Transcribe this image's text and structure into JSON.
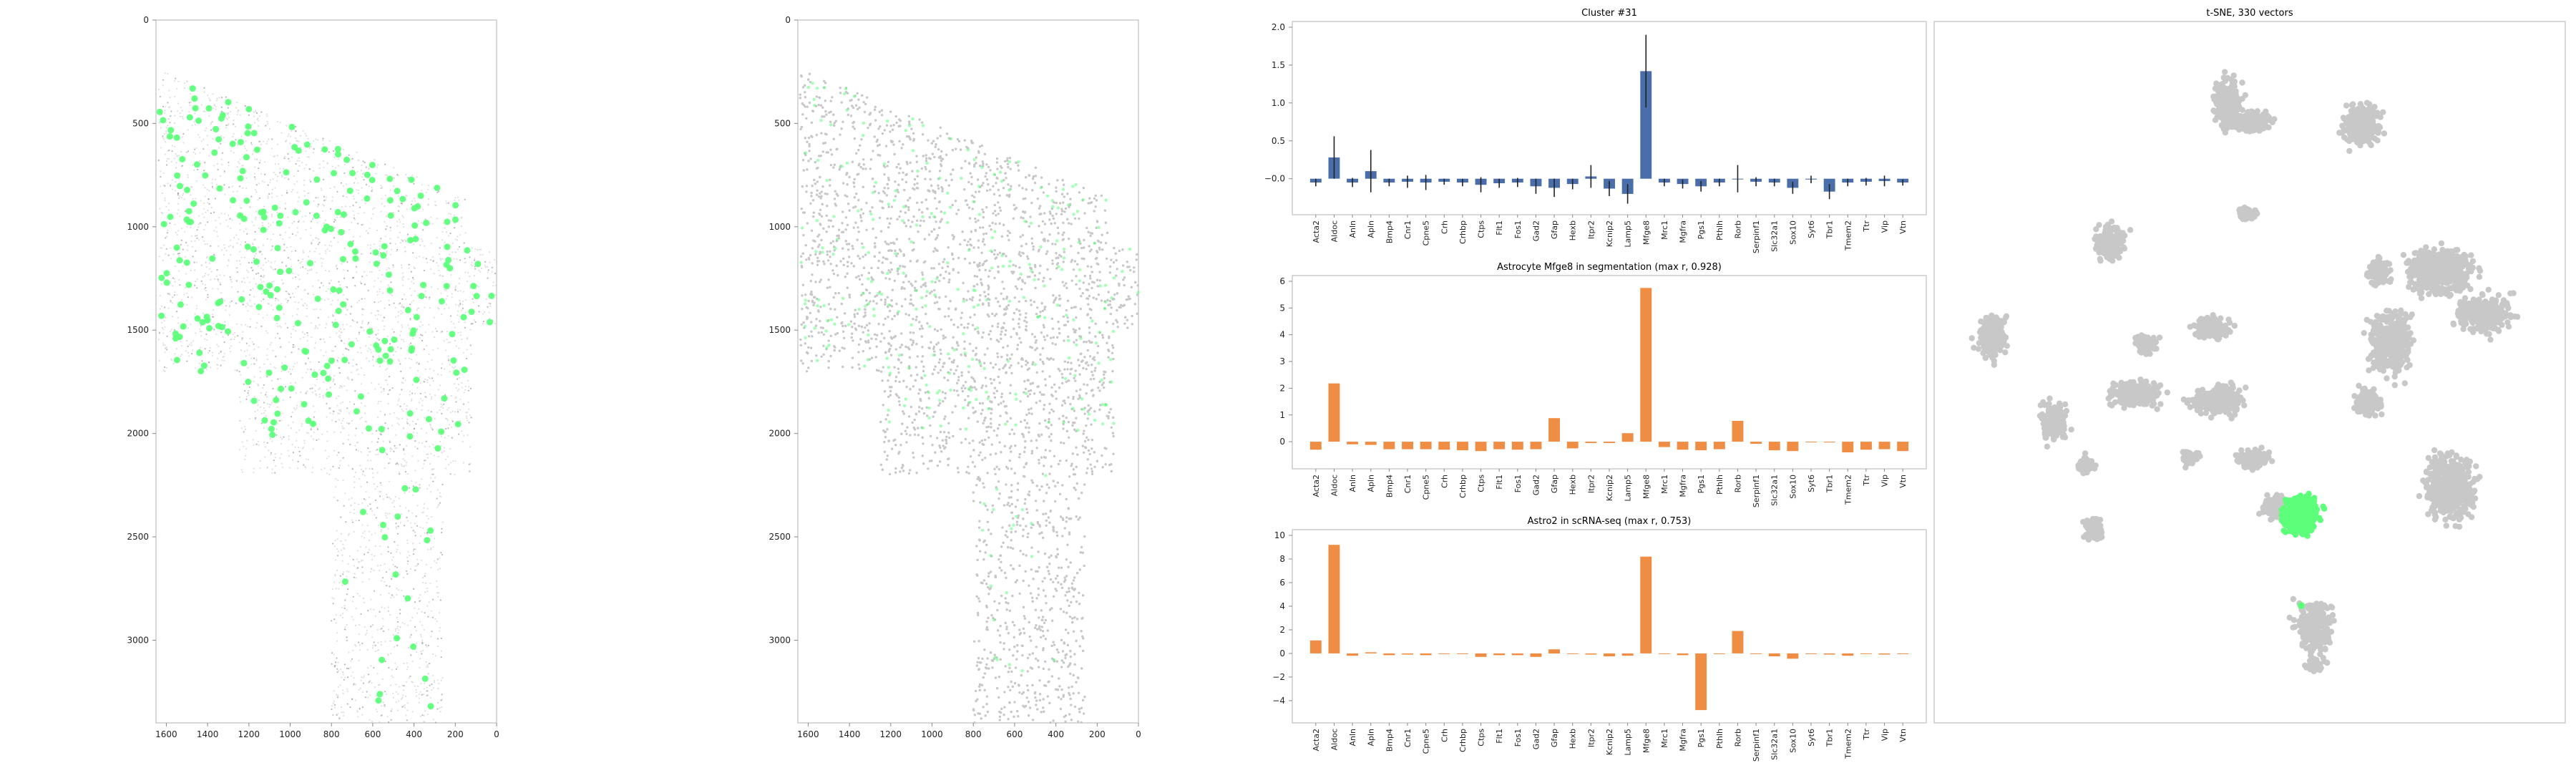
{
  "colors": {
    "highlight": "#5dff7a",
    "tissue": "#c8c8c8",
    "tissue_dark": "#a8a8a8",
    "cluster_bar": "#4a6ea9",
    "compare_bar": "#ef8d45",
    "axis": "#cccccc",
    "text": "#222222"
  },
  "chart_data": [
    {
      "id": "panel1",
      "type": "scatter",
      "title": "",
      "xlabel": "",
      "ylabel": "",
      "xlim": [
        1650,
        0
      ],
      "ylim": [
        3400,
        0
      ],
      "x_ticks": [
        "1600",
        "1400",
        "1200",
        "1000",
        "800",
        "600",
        "400",
        "200",
        "0"
      ],
      "x_tick_values": [
        1600,
        1400,
        1200,
        1000,
        800,
        600,
        400,
        200,
        0
      ],
      "y_ticks": [
        "0",
        "500",
        "1000",
        "1500",
        "2000",
        "2500",
        "3000"
      ],
      "y_tick_values": [
        0,
        500,
        1000,
        1500,
        2000,
        2500,
        3000
      ],
      "background": "tissue section (gray, sparse)",
      "highlight_series": "cells in cluster (green)",
      "grid": false
    },
    {
      "id": "panel2",
      "type": "scatter",
      "title": "",
      "xlabel": "",
      "ylabel": "",
      "xlim": [
        1650,
        0
      ],
      "ylim": [
        3400,
        0
      ],
      "x_ticks": [
        "1600",
        "1400",
        "1200",
        "1000",
        "800",
        "600",
        "400",
        "200",
        "0"
      ],
      "x_tick_values": [
        1600,
        1400,
        1200,
        1000,
        800,
        600,
        400,
        200,
        0
      ],
      "y_ticks": [
        "0",
        "500",
        "1000",
        "1500",
        "2000",
        "2500",
        "3000"
      ],
      "y_tick_values": [
        0,
        500,
        1000,
        1500,
        2000,
        2500,
        3000
      ],
      "background": "tissue section (gray, dense)",
      "highlight_series": "cells in cluster (green, faint)",
      "grid": false
    },
    {
      "id": "bar1",
      "type": "bar",
      "title": "Cluster #31",
      "xlabel": "",
      "ylabel": "",
      "ylim": [
        -0.4,
        2.0
      ],
      "y_ticks": [
        "−0.0",
        "0.5",
        "1.0",
        "1.5",
        "2.0"
      ],
      "y_tick_values": [
        0,
        0.5,
        1.0,
        1.5,
        2.0
      ],
      "categories": [
        "Acta2",
        "Aldoc",
        "Anln",
        "Apln",
        "Bmp4",
        "Cnr1",
        "Cpne5",
        "Crh",
        "Crhbp",
        "Ctps",
        "Flt1",
        "Fos1",
        "Gad2",
        "Gfap",
        "Hexb",
        "Itpr2",
        "Kcnip2",
        "Lamp5",
        "Mfge8",
        "Mrc1",
        "Mgfra",
        "Pgs1",
        "Pthlh",
        "Rorb",
        "Serpinf1",
        "Slc32a1",
        "Sox10",
        "Syt6",
        "Tbr1",
        "Tmem2",
        "Ttr",
        "Vip",
        "Vtn"
      ],
      "values": [
        -0.05,
        0.28,
        -0.05,
        0.1,
        -0.05,
        -0.04,
        -0.05,
        -0.04,
        -0.05,
        -0.08,
        -0.06,
        -0.05,
        -0.1,
        -0.12,
        -0.07,
        0.03,
        -0.13,
        -0.2,
        1.42,
        -0.05,
        -0.07,
        -0.1,
        -0.05,
        0.0,
        -0.04,
        -0.05,
        -0.12,
        -0.01,
        -0.17,
        -0.05,
        -0.04,
        -0.03,
        -0.05
      ],
      "errors": [
        0.05,
        0.28,
        0.06,
        0.28,
        0.05,
        0.08,
        0.1,
        0.04,
        0.05,
        0.1,
        0.06,
        0.06,
        0.1,
        0.12,
        0.07,
        0.15,
        0.1,
        0.13,
        0.48,
        0.05,
        0.06,
        0.07,
        0.05,
        0.18,
        0.06,
        0.05,
        0.08,
        0.05,
        0.1,
        0.05,
        0.05,
        0.07,
        0.04
      ],
      "grid": false
    },
    {
      "id": "bar2",
      "type": "bar",
      "title": "Astrocyte Mfge8 in segmentation (max r, 0.928)",
      "xlabel": "",
      "ylabel": "",
      "ylim": [
        -0.8,
        6.0
      ],
      "y_ticks": [
        "0",
        "1",
        "2",
        "3",
        "4",
        "5",
        "6"
      ],
      "y_tick_values": [
        0,
        1,
        2,
        3,
        4,
        5,
        6
      ],
      "categories": [
        "Acta2",
        "Aldoc",
        "Anln",
        "Apln",
        "Bmp4",
        "Cnr1",
        "Cpne5",
        "Crh",
        "Crhbp",
        "Ctps",
        "Flt1",
        "Fos1",
        "Gad2",
        "Gfap",
        "Hexb",
        "Itpr2",
        "Kcnip2",
        "Lamp5",
        "Mfge8",
        "Mrc1",
        "Mgfra",
        "Pgs1",
        "Pthlh",
        "Rorb",
        "Serpinf1",
        "Slc32a1",
        "Sox10",
        "Syt6",
        "Tbr1",
        "Tmem2",
        "Ttr",
        "Vip",
        "Vtn"
      ],
      "values": [
        -0.3,
        2.18,
        -0.1,
        -0.12,
        -0.28,
        -0.28,
        -0.28,
        -0.3,
        -0.32,
        -0.35,
        -0.28,
        -0.3,
        -0.28,
        0.88,
        -0.25,
        -0.05,
        -0.05,
        0.32,
        5.75,
        -0.2,
        -0.3,
        -0.32,
        -0.28,
        0.78,
        -0.08,
        -0.32,
        -0.35,
        0.0,
        -0.03,
        -0.4,
        -0.3,
        -0.28,
        -0.35
      ],
      "grid": false
    },
    {
      "id": "bar3",
      "type": "bar",
      "title": "Astro2 in scRNA-seq (max r, 0.753)",
      "xlabel": "",
      "ylabel": "",
      "ylim": [
        -5.4,
        10.0
      ],
      "y_ticks": [
        "−4",
        "−2",
        "0",
        "2",
        "4",
        "6",
        "8",
        "10"
      ],
      "y_tick_values": [
        -4,
        -2,
        0,
        2,
        4,
        6,
        8,
        10
      ],
      "categories": [
        "Acta2",
        "Aldoc",
        "Anln",
        "Apln",
        "Bmp4",
        "Cnr1",
        "Cpne5",
        "Crh",
        "Crhbp",
        "Ctps",
        "Flt1",
        "Fos1",
        "Gad2",
        "Gfap",
        "Hexb",
        "Itpr2",
        "Kcnip2",
        "Lamp5",
        "Mfge8",
        "Mrc1",
        "Mgfra",
        "Pgs1",
        "Pthlh",
        "Rorb",
        "Serpinf1",
        "Slc32a1",
        "Sox10",
        "Syt6",
        "Tbr1",
        "Tmem2",
        "Ttr",
        "Vip",
        "Vtn"
      ],
      "values": [
        1.1,
        9.2,
        -0.2,
        0.1,
        -0.15,
        -0.1,
        -0.15,
        0.0,
        0.0,
        -0.3,
        -0.15,
        -0.15,
        -0.3,
        0.35,
        -0.05,
        -0.1,
        -0.25,
        -0.2,
        8.2,
        0.0,
        -0.15,
        -4.8,
        0.0,
        1.9,
        -0.05,
        -0.25,
        -0.45,
        0.0,
        -0.1,
        -0.2,
        0.0,
        -0.1,
        -0.05
      ],
      "grid": false
    },
    {
      "id": "tsne",
      "type": "scatter",
      "title": "t-SNE, 330 vectors",
      "xlabel": "",
      "ylabel": "",
      "background": "all cells (gray clusters)",
      "highlight_series": "cluster cells (green)",
      "grid": false
    }
  ]
}
